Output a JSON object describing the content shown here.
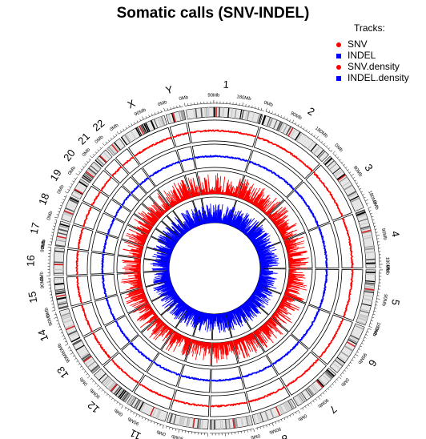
{
  "chart_data": {
    "type": "circos",
    "title": "Somatic calls (SNV-INDEL)",
    "legend": {
      "title": "Tracks:",
      "placement": "top-right",
      "entries": [
        {
          "label": "SNV",
          "color": "#ff0000",
          "symbol": "dot"
        },
        {
          "label": "INDEL",
          "color": "#0000ff",
          "symbol": "square"
        },
        {
          "label": "SNV.density",
          "color": "#ff0000",
          "symbol": "dot"
        },
        {
          "label": "INDEL.density",
          "color": "#0000ff",
          "symbol": "square"
        }
      ]
    },
    "chromosomes": [
      {
        "name": "1",
        "length_mb": 249
      },
      {
        "name": "2",
        "length_mb": 243
      },
      {
        "name": "3",
        "length_mb": 198
      },
      {
        "name": "4",
        "length_mb": 191
      },
      {
        "name": "5",
        "length_mb": 181
      },
      {
        "name": "6",
        "length_mb": 171
      },
      {
        "name": "7",
        "length_mb": 159
      },
      {
        "name": "8",
        "length_mb": 145
      },
      {
        "name": "9",
        "length_mb": 138
      },
      {
        "name": "10",
        "length_mb": 134
      },
      {
        "name": "11",
        "length_mb": 135
      },
      {
        "name": "12",
        "length_mb": 133
      },
      {
        "name": "13",
        "length_mb": 115
      },
      {
        "name": "14",
        "length_mb": 107
      },
      {
        "name": "15",
        "length_mb": 102
      },
      {
        "name": "16",
        "length_mb": 90
      },
      {
        "name": "17",
        "length_mb": 81
      },
      {
        "name": "18",
        "length_mb": 78
      },
      {
        "name": "19",
        "length_mb": 59
      },
      {
        "name": "20",
        "length_mb": 63
      },
      {
        "name": "21",
        "length_mb": 48
      },
      {
        "name": "22",
        "length_mb": 51
      },
      {
        "name": "X",
        "length_mb": 155
      },
      {
        "name": "Y",
        "length_mb": 59
      }
    ],
    "tick_interval_mb": 90,
    "tick_unit": "Mb",
    "tracks": [
      "SNV",
      "INDEL",
      "SNV.density",
      "INDEL.density"
    ],
    "colors": {
      "snv": "#ff0000",
      "indel": "#0000ff",
      "ideogram_band": "#000000"
    }
  }
}
